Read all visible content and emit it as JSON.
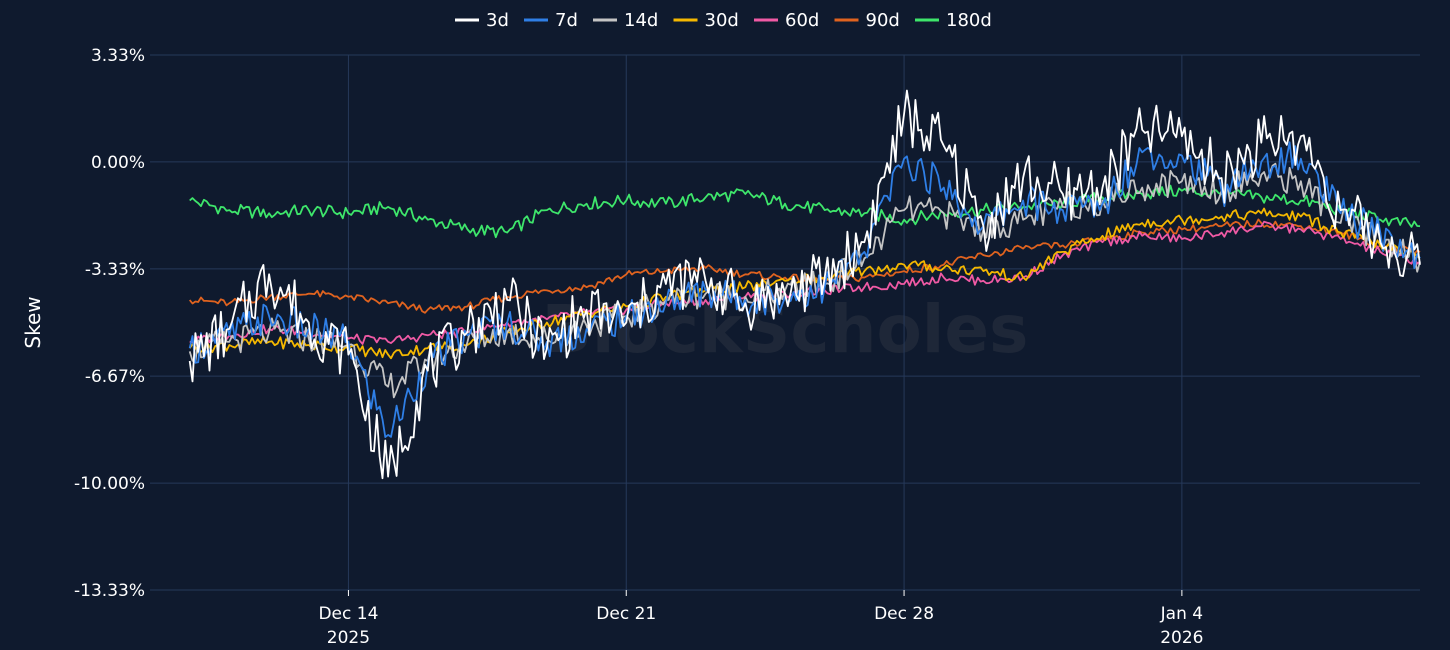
{
  "chart_data": {
    "type": "line",
    "title": "",
    "xlabel": "",
    "ylabel": "Skew",
    "ylim": [
      -13.33,
      3.33
    ],
    "y_ticks": [
      {
        "value": 3.33,
        "label": "3.33%"
      },
      {
        "value": 0,
        "label": "0.00%"
      },
      {
        "value": -3.33,
        "label": "-3.33%"
      },
      {
        "value": -6.67,
        "label": "-6.67%"
      },
      {
        "value": -10,
        "label": "-10.00%"
      },
      {
        "value": -13.33,
        "label": "-13.33%"
      }
    ],
    "xlim": [
      "2025-12-09",
      "2026-01-10"
    ],
    "x_ticks": [
      {
        "date": "2025-12-14",
        "label": "Dec 14",
        "sublabel": "2025"
      },
      {
        "date": "2025-12-21",
        "label": "Dec 21",
        "sublabel": ""
      },
      {
        "date": "2025-12-28",
        "label": "Dec 28",
        "sublabel": ""
      },
      {
        "date": "2026-01-04",
        "label": "Jan 4",
        "sublabel": "2026"
      }
    ],
    "grid": true,
    "legend_position": "top",
    "watermark": "BlockScholes",
    "x": [
      "2025-12-10",
      "2025-12-11",
      "2025-12-12",
      "2025-12-13",
      "2025-12-14",
      "2025-12-15",
      "2025-12-16",
      "2025-12-17",
      "2025-12-18",
      "2025-12-19",
      "2025-12-20",
      "2025-12-21",
      "2025-12-22",
      "2025-12-23",
      "2025-12-24",
      "2025-12-25",
      "2025-12-26",
      "2025-12-27",
      "2025-12-28",
      "2025-12-29",
      "2025-12-30",
      "2025-12-31",
      "2026-01-01",
      "2026-01-02",
      "2026-01-03",
      "2026-01-04",
      "2026-01-05",
      "2026-01-06",
      "2026-01-07",
      "2026-01-08",
      "2026-01-09",
      "2026-01-10"
    ],
    "series": [
      {
        "name": "3d",
        "color": "#ffffff",
        "values": [
          -6.2,
          -5.2,
          -3.5,
          -5.0,
          -6.0,
          -9.8,
          -6.5,
          -5.3,
          -4.3,
          -5.8,
          -4.6,
          -5.0,
          -3.8,
          -3.7,
          -4.4,
          -4.1,
          -3.6,
          -2.5,
          1.5,
          0.5,
          -2.0,
          -0.5,
          -1.0,
          -0.8,
          1.0,
          0.8,
          -0.5,
          0.6,
          0.8,
          -1.5,
          -2.5,
          -3.2
        ]
      },
      {
        "name": "7d",
        "color": "#2f7fe6",
        "values": [
          -5.8,
          -5.4,
          -4.8,
          -5.2,
          -5.6,
          -8.5,
          -6.3,
          -5.4,
          -5.0,
          -5.6,
          -5.2,
          -4.8,
          -4.4,
          -4.0,
          -4.3,
          -4.2,
          -3.9,
          -2.8,
          0.1,
          -0.8,
          -2.0,
          -1.2,
          -1.5,
          -1.3,
          0.3,
          0.2,
          -0.9,
          0.0,
          0.1,
          -1.6,
          -2.2,
          -3.0
        ]
      },
      {
        "name": "14d",
        "color": "#c4c4c4",
        "values": [
          -5.9,
          -5.6,
          -5.3,
          -5.5,
          -5.7,
          -7.0,
          -6.2,
          -5.6,
          -5.3,
          -5.5,
          -5.1,
          -4.8,
          -4.3,
          -4.1,
          -4.2,
          -4.0,
          -3.8,
          -3.0,
          -1.5,
          -1.6,
          -2.1,
          -1.8,
          -1.4,
          -1.2,
          -0.8,
          -0.6,
          -0.9,
          -0.4,
          -0.6,
          -1.9,
          -2.4,
          -3.1
        ]
      },
      {
        "name": "30d",
        "color": "#f5b800",
        "values": [
          -5.8,
          -5.7,
          -5.6,
          -5.7,
          -5.8,
          -6.0,
          -5.8,
          -5.7,
          -5.3,
          -5.0,
          -4.7,
          -4.5,
          -4.2,
          -4.0,
          -3.9,
          -3.7,
          -3.6,
          -3.4,
          -3.2,
          -3.3,
          -3.4,
          -3.6,
          -2.8,
          -2.3,
          -1.9,
          -1.8,
          -1.7,
          -1.6,
          -1.7,
          -2.2,
          -2.6,
          -3.0
        ]
      },
      {
        "name": "60d",
        "color": "#f05aa5",
        "values": [
          -5.6,
          -5.4,
          -5.2,
          -5.3,
          -5.5,
          -5.6,
          -5.4,
          -5.3,
          -5.0,
          -4.9,
          -4.7,
          -4.6,
          -4.4,
          -4.3,
          -4.2,
          -4.1,
          -4.0,
          -3.9,
          -3.8,
          -3.6,
          -3.7,
          -3.6,
          -2.9,
          -2.5,
          -2.3,
          -2.4,
          -2.2,
          -2.0,
          -2.1,
          -2.4,
          -2.8,
          -3.1
        ]
      },
      {
        "name": "90d",
        "color": "#e0631f",
        "values": [
          -4.3,
          -4.4,
          -4.2,
          -4.1,
          -4.2,
          -4.4,
          -4.6,
          -4.5,
          -4.2,
          -4.0,
          -3.9,
          -3.5,
          -3.4,
          -3.3,
          -3.5,
          -3.6,
          -3.7,
          -3.6,
          -3.4,
          -3.2,
          -2.9,
          -2.7,
          -2.6,
          -2.4,
          -2.2,
          -2.1,
          -2.0,
          -1.9,
          -2.0,
          -2.2,
          -2.6,
          -2.8
        ]
      },
      {
        "name": "180d",
        "color": "#3ee66b",
        "values": [
          -1.2,
          -1.5,
          -1.6,
          -1.5,
          -1.6,
          -1.4,
          -1.8,
          -2.1,
          -2.2,
          -1.5,
          -1.3,
          -1.2,
          -1.3,
          -1.1,
          -1.0,
          -1.3,
          -1.5,
          -1.6,
          -1.8,
          -1.6,
          -1.5,
          -1.4,
          -1.3,
          -1.1,
          -1.0,
          -0.9,
          -1.0,
          -1.1,
          -1.2,
          -1.5,
          -1.8,
          -2.0
        ]
      }
    ]
  }
}
